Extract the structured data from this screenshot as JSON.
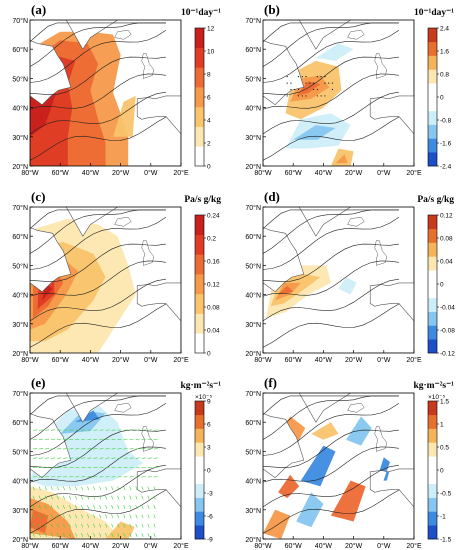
{
  "figure": {
    "lat_ticks": [
      "20°N",
      "30°N",
      "40°N",
      "50°N",
      "60°N",
      "70°N"
    ],
    "lon_ticks": [
      "80°W",
      "60°W",
      "40°W",
      "20°W",
      "0°W",
      "20°E"
    ],
    "lat_range": [
      20,
      70
    ],
    "lon_range": [
      -80,
      20
    ]
  },
  "chart_data": [
    {
      "type": "heatmap",
      "panel": "(a)",
      "units": "10⁻¹day⁻¹",
      "colorbar": {
        "ticks": [
          0,
          2,
          4,
          6,
          8,
          10,
          12
        ],
        "min": 0,
        "max": 12,
        "colors": [
          "#ffffff",
          "#fde7b0",
          "#f9c46b",
          "#f5994a",
          "#ec6a34",
          "#df3b25",
          "#c8201c"
        ]
      },
      "overlays": [
        "land-mask",
        "isotherms"
      ]
    },
    {
      "type": "heatmap",
      "panel": "(b)",
      "units": "10⁻¹day⁻¹",
      "colorbar": {
        "ticks": [
          -2.4,
          -1.6,
          -0.8,
          0,
          0.8,
          1.6,
          2.4
        ],
        "min": -2.4,
        "max": 2.4,
        "colors": [
          "#1c4fc8",
          "#3d8be0",
          "#86c6f0",
          "#cdeef8",
          "#ffffff",
          "#ffffff",
          "#fde7b0",
          "#f5b35a",
          "#e8702f",
          "#c83a1c"
        ]
      },
      "overlays": [
        "land-mask",
        "isotherms",
        "stippling"
      ]
    },
    {
      "type": "heatmap",
      "panel": "(c)",
      "units": "Pa/s g/kg",
      "colorbar": {
        "ticks": [
          0,
          0.04,
          0.08,
          0.12,
          0.16,
          0.2,
          0.24
        ],
        "min": 0,
        "max": 0.24,
        "colors": [
          "#ffffff",
          "#fde7b0",
          "#f9c46b",
          "#f5994a",
          "#ec6a34",
          "#df3b25",
          "#c8201c"
        ]
      },
      "overlays": [
        "land-mask",
        "isotherms"
      ]
    },
    {
      "type": "heatmap",
      "panel": "(d)",
      "units": "Pa/s g/kg",
      "colorbar": {
        "ticks": [
          -0.12,
          -0.08,
          -0.04,
          0,
          0.04,
          0.08,
          0.12
        ],
        "min": -0.12,
        "max": 0.12,
        "colors": [
          "#1c4fc8",
          "#3d8be0",
          "#86c6f0",
          "#cdeef8",
          "#ffffff",
          "#ffffff",
          "#fde7b0",
          "#f5b35a",
          "#e8702f",
          "#c83a1c"
        ]
      },
      "overlays": [
        "land-mask",
        "isotherms"
      ]
    },
    {
      "type": "heatmap",
      "panel": "(e)",
      "units": "kg·m⁻²s⁻¹",
      "multiplier": "×10⁻⁵",
      "colorbar": {
        "ticks": [
          -9,
          -6,
          -3,
          0,
          3,
          6,
          9
        ],
        "min": -9,
        "max": 9,
        "colors": [
          "#1c4fc8",
          "#3d8be0",
          "#86c6f0",
          "#cdeef8",
          "#ffffff",
          "#ffffff",
          "#fde7b0",
          "#f5b35a",
          "#e8702f",
          "#c83a1c"
        ]
      },
      "overlays": [
        "land-mask",
        "isotherms",
        "flux-vectors"
      ]
    },
    {
      "type": "heatmap",
      "panel": "(f)",
      "units": "kg·m⁻²s⁻¹",
      "multiplier": "×10⁻⁵",
      "colorbar": {
        "ticks": [
          -1.5,
          -1,
          -0.5,
          0,
          0.5,
          1,
          1.5
        ],
        "min": -1.5,
        "max": 1.5,
        "colors": [
          "#1c4fc8",
          "#3d8be0",
          "#86c6f0",
          "#cdeef8",
          "#ffffff",
          "#ffffff",
          "#fde7b0",
          "#f5b35a",
          "#e8702f",
          "#c83a1c"
        ]
      },
      "overlays": [
        "land-mask",
        "isotherms"
      ]
    }
  ]
}
